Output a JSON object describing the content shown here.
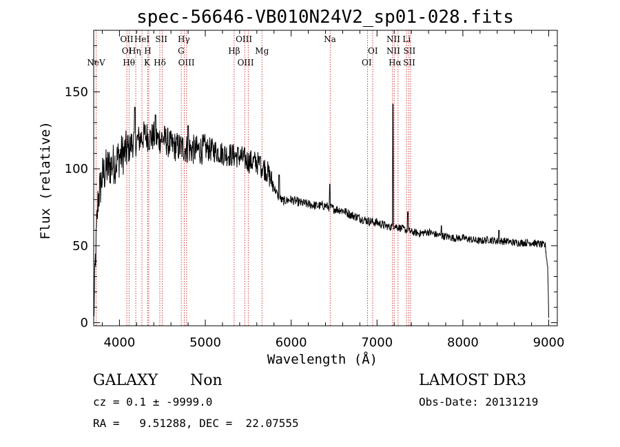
{
  "chart_data": {
    "type": "line",
    "title": "spec-56646-VB010N24V2_sp01-028.fits",
    "xlabel": "Wavelength (Å)",
    "ylabel": "Flux (relative)",
    "xlim": [
      3700,
      9100
    ],
    "ylim": [
      -2,
      190
    ],
    "xticks": [
      4000,
      5000,
      6000,
      7000,
      8000,
      9000
    ],
    "yticks": [
      0,
      50,
      100,
      150
    ],
    "xtick_labels": [
      "4000",
      "5000",
      "6000",
      "7000",
      "8000",
      "9000"
    ],
    "ytick_labels": [
      "0",
      "50",
      "100",
      "150"
    ],
    "x_minor_step": 200,
    "y_minor_step": 10,
    "spectrum_nodes": [
      [
        3700,
        2
      ],
      [
        3720,
        40
      ],
      [
        3735,
        60
      ],
      [
        3750,
        80
      ],
      [
        3800,
        95
      ],
      [
        3850,
        100
      ],
      [
        3900,
        102
      ],
      [
        3950,
        104
      ],
      [
        4000,
        108
      ],
      [
        4050,
        110
      ],
      [
        4100,
        112
      ],
      [
        4150,
        117
      ],
      [
        4200,
        118
      ],
      [
        4250,
        120
      ],
      [
        4300,
        122
      ],
      [
        4350,
        120
      ],
      [
        4400,
        121
      ],
      [
        4450,
        119
      ],
      [
        4500,
        120
      ],
      [
        4550,
        118
      ],
      [
        4600,
        115
      ],
      [
        4700,
        114
      ],
      [
        4800,
        113
      ],
      [
        4900,
        112
      ],
      [
        5000,
        113
      ],
      [
        5100,
        112
      ],
      [
        5200,
        110
      ],
      [
        5300,
        109
      ],
      [
        5400,
        108
      ],
      [
        5500,
        105
      ],
      [
        5600,
        104
      ],
      [
        5700,
        100
      ],
      [
        5750,
        95
      ],
      [
        5800,
        88
      ],
      [
        5850,
        82
      ],
      [
        5900,
        79
      ],
      [
        6000,
        80
      ],
      [
        6100,
        78
      ],
      [
        6200,
        77
      ],
      [
        6300,
        76
      ],
      [
        6400,
        76
      ],
      [
        6500,
        74
      ],
      [
        6600,
        73
      ],
      [
        6700,
        70
      ],
      [
        6800,
        68
      ],
      [
        6900,
        66
      ],
      [
        7000,
        65
      ],
      [
        7100,
        63
      ],
      [
        7150,
        62
      ],
      [
        7200,
        63
      ],
      [
        7300,
        61
      ],
      [
        7400,
        59
      ],
      [
        7500,
        58
      ],
      [
        7600,
        59
      ],
      [
        7700,
        57
      ],
      [
        7800,
        56
      ],
      [
        7900,
        55
      ],
      [
        8000,
        55
      ],
      [
        8100,
        54
      ],
      [
        8200,
        53
      ],
      [
        8300,
        54
      ],
      [
        8400,
        53
      ],
      [
        8500,
        53
      ],
      [
        8600,
        52
      ],
      [
        8700,
        52
      ],
      [
        8800,
        52
      ],
      [
        8900,
        51
      ],
      [
        8960,
        50
      ],
      [
        8990,
        35
      ],
      [
        9000,
        4
      ]
    ],
    "spectrum_features": [
      {
        "x": 7185,
        "y": 142
      },
      {
        "x": 6450,
        "y": 90
      },
      {
        "x": 7360,
        "y": 72
      },
      {
        "x": 4180,
        "y": 140
      },
      {
        "x": 4420,
        "y": 135
      },
      {
        "x": 4800,
        "y": 128
      },
      {
        "x": 5640,
        "y": 108
      },
      {
        "x": 5860,
        "y": 96
      },
      {
        "x": 8420,
        "y": 60
      },
      {
        "x": 7750,
        "y": 63
      }
    ],
    "spectral_lines": [
      {
        "label": "NeV",
        "x": 3728,
        "row": 4
      },
      {
        "label": "OII",
        "x": 4085,
        "row": 1
      },
      {
        "label": "OI",
        "x": 4085,
        "row": 2
      },
      {
        "label": "Hη",
        "x": 4180,
        "row": 2
      },
      {
        "label": "Hθ",
        "x": 4110,
        "row": 3
      },
      {
        "label": "HeI",
        "x": 4262,
        "row": 1
      },
      {
        "label": "H",
        "x": 4330,
        "row": 2
      },
      {
        "label": "K",
        "x": 4322,
        "row": 3
      },
      {
        "label": "SII",
        "x": 4488,
        "row": 1
      },
      {
        "label": "Hδ",
        "x": 4470,
        "row": 3
      },
      {
        "label": "Hγ",
        "x": 4750,
        "row": 1
      },
      {
        "label": "G",
        "x": 4718,
        "row": 2
      },
      {
        "label": "OIII",
        "x": 4780,
        "row": 3
      },
      {
        "label": "OIII",
        "x": 5450,
        "row": 1
      },
      {
        "label": "Hβ",
        "x": 5336,
        "row": 2
      },
      {
        "label": "OIII",
        "x": 5470,
        "row": 3
      },
      {
        "label": "Mg",
        "x": 5660,
        "row": 2
      },
      {
        "label": "Na",
        "x": 6452,
        "row": 1
      },
      {
        "label": "OI",
        "x": 6952,
        "row": 2
      },
      {
        "label": "OI",
        "x": 6880,
        "row": 3
      },
      {
        "label": "NII",
        "x": 7190,
        "row": 1
      },
      {
        "label": "NII",
        "x": 7190,
        "row": 2
      },
      {
        "label": "Hα",
        "x": 7210,
        "row": 3
      },
      {
        "label": "Li",
        "x": 7345,
        "row": 1
      },
      {
        "label": "SII",
        "x": 7378,
        "row": 2
      },
      {
        "label": "SII",
        "x": 7375,
        "row": 3
      }
    ],
    "marker_lines_x": [
      3728,
      4086,
      4112,
      4190,
      4262,
      4330,
      4342,
      4470,
      4498,
      4720,
      4755,
      4782,
      5336,
      5460,
      5500,
      5660,
      6455,
      6890,
      6950,
      7180,
      7200,
      7245,
      7345,
      7370,
      7390
    ]
  },
  "footer": {
    "object_class": "GALAXY",
    "subclass": "Non",
    "survey": "LAMOST DR3",
    "cz_text": "cz = 0.1 ± -9999.0",
    "obs_date": "Obs-Date: 20131219",
    "radec": "RA =   9.51288, DEC =  22.07555"
  }
}
